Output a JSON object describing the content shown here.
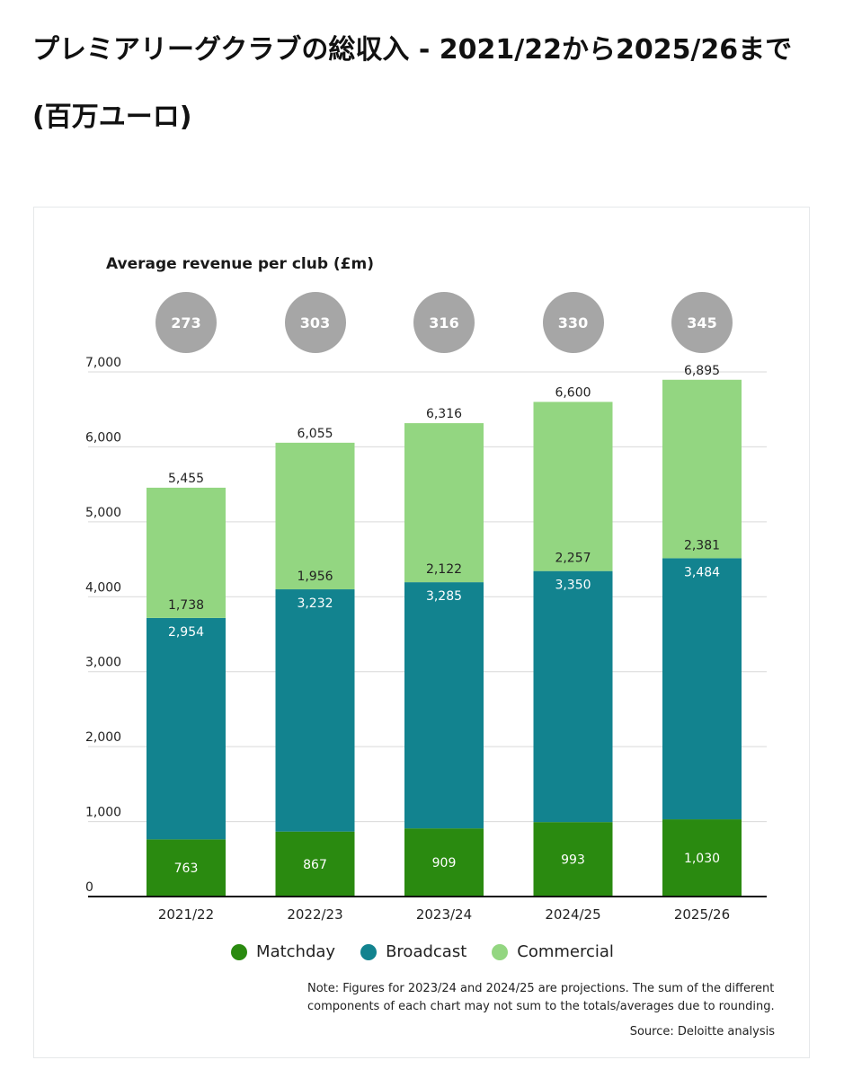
{
  "page": {
    "title": "プレミアリーグクラブの総収入 - 2021/22から2025/26まで (百万ユーロ)"
  },
  "colors": {
    "matchday": "#2a8a10",
    "broadcast": "#12838f",
    "commercial": "#93d681",
    "bubble": "#a6a6a6",
    "grid": "#d9d9d9",
    "axis": "#111111"
  },
  "chart_data": {
    "type": "bar",
    "stacked": true,
    "categories": [
      "2021/22",
      "2022/23",
      "2023/24",
      "2024/25",
      "2025/26"
    ],
    "series": [
      {
        "name": "Matchday",
        "key": "matchday",
        "values": [
          763,
          867,
          909,
          993,
          1030
        ],
        "labels": [
          "763",
          "867",
          "909",
          "993",
          "1,030"
        ]
      },
      {
        "name": "Broadcast",
        "key": "broadcast",
        "values": [
          2954,
          3232,
          3285,
          3350,
          3484
        ],
        "labels": [
          "2,954",
          "3,232",
          "3,285",
          "3,350",
          "3,484"
        ]
      },
      {
        "name": "Commercial",
        "key": "commercial",
        "values": [
          1738,
          1956,
          2122,
          2257,
          2381
        ],
        "labels": [
          "1,738",
          "1,956",
          "2,122",
          "2,257",
          "2,381"
        ]
      }
    ],
    "totals": [
      5455,
      6055,
      6316,
      6600,
      6895
    ],
    "total_labels": [
      "5,455",
      "6,055",
      "6,316",
      "6,600",
      "6,895"
    ],
    "y_ticks": [
      0,
      1000,
      2000,
      3000,
      4000,
      5000,
      6000,
      7000
    ],
    "y_tick_labels": [
      "0",
      "1,000",
      "2,000",
      "3,000",
      "4,000",
      "5,000",
      "6,000",
      "7,000"
    ],
    "ylim": [
      0,
      7000
    ],
    "grid": true,
    "legend_position": "bottom",
    "average_title": "Average revenue per club (£m)",
    "average_per_club": [
      "273",
      "303",
      "316",
      "330",
      "345"
    ],
    "note": "Note: Figures for 2023/24 and 2024/25 are projections. The sum of the different components of each chart may not sum to the totals/averages due to rounding.",
    "source": "Source: Deloitte analysis"
  }
}
